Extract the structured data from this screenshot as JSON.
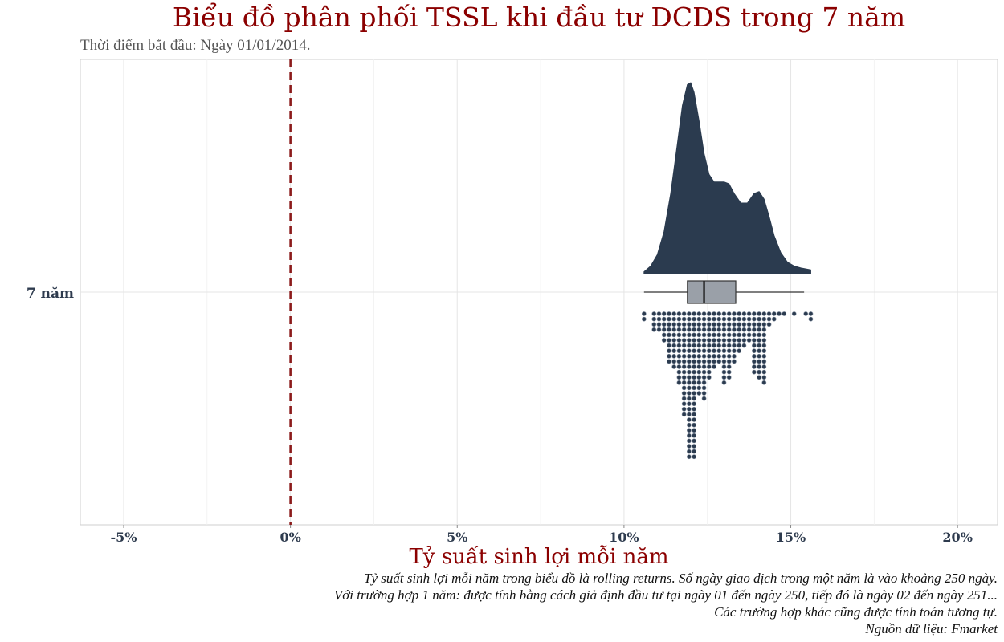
{
  "title": "Biểu đồ phân phối TSSL khi đầu tư DCDS trong 7 năm",
  "subtitle": "Thời điểm bắt đầu: Ngày 01/01/2014.",
  "caption": [
    "Tỷ suất sinh lợi mỗi năm trong biểu đồ là rolling returns. Số ngày giao dịch trong một năm là vào khoảng 250 ngày.",
    "Với trường hợp 1 năm: được tính bằng cách giả định đầu tư tại ngày 01 đến ngày 250, tiếp đó là ngày 02 đến ngày 251...",
    "Các trường hợp khác cũng được tính toán tương tự.",
    "Nguồn dữ liệu: Fmarket"
  ],
  "colors": {
    "title": "#8b0000",
    "density": "#2b3b4f",
    "box_fill": "#9aa0a8",
    "dots": "#2b3b4f",
    "reference_line": "#8b1a1a",
    "grid": "#e5e5e5"
  },
  "chart_data": {
    "type": "raincloud",
    "category": "7 năm",
    "xlabel": "Tỷ suất sinh lợi mỗi năm",
    "xlim": [
      -6.3,
      21.2
    ],
    "x_ticks": [
      -5,
      0,
      5,
      10,
      15,
      20
    ],
    "x_tick_labels": [
      "-5%",
      "0%",
      "5%",
      "10%",
      "15%",
      "20%"
    ],
    "reference_line": 0,
    "density": {
      "x": [
        10.6,
        10.8,
        11.0,
        11.2,
        11.4,
        11.6,
        11.75,
        11.9,
        12.0,
        12.1,
        12.25,
        12.4,
        12.55,
        12.7,
        12.85,
        13.0,
        13.15,
        13.3,
        13.5,
        13.7,
        13.9,
        14.05,
        14.2,
        14.35,
        14.5,
        14.7,
        14.9,
        15.1,
        15.3,
        15.6
      ],
      "y": [
        0.01,
        0.04,
        0.1,
        0.22,
        0.42,
        0.68,
        0.88,
        0.99,
        1.0,
        0.95,
        0.8,
        0.63,
        0.52,
        0.48,
        0.48,
        0.48,
        0.47,
        0.42,
        0.37,
        0.37,
        0.42,
        0.43,
        0.39,
        0.3,
        0.2,
        0.11,
        0.06,
        0.04,
        0.03,
        0.02
      ]
    },
    "boxplot": {
      "whisker_low": 10.6,
      "q1": 11.9,
      "median": 12.4,
      "q3": 13.35,
      "whisker_high": 15.4
    },
    "dotplot": {
      "x": [
        10.6,
        10.75,
        10.9,
        11.05,
        11.2,
        11.35,
        11.5,
        11.65,
        11.8,
        11.95,
        12.1,
        12.25,
        12.4,
        12.55,
        12.7,
        12.85,
        13.0,
        13.15,
        13.3,
        13.45,
        13.6,
        13.75,
        13.9,
        14.05,
        14.2,
        14.35,
        14.5,
        14.65,
        14.8,
        15.1,
        15.45,
        15.6
      ],
      "counts": [
        2,
        0,
        4,
        4,
        6,
        10,
        11,
        14,
        20,
        28,
        28,
        16,
        17,
        13,
        11,
        10,
        14,
        13,
        10,
        8,
        7,
        6,
        12,
        13,
        14,
        3,
        2,
        1,
        1,
        1,
        1,
        2
      ]
    }
  }
}
